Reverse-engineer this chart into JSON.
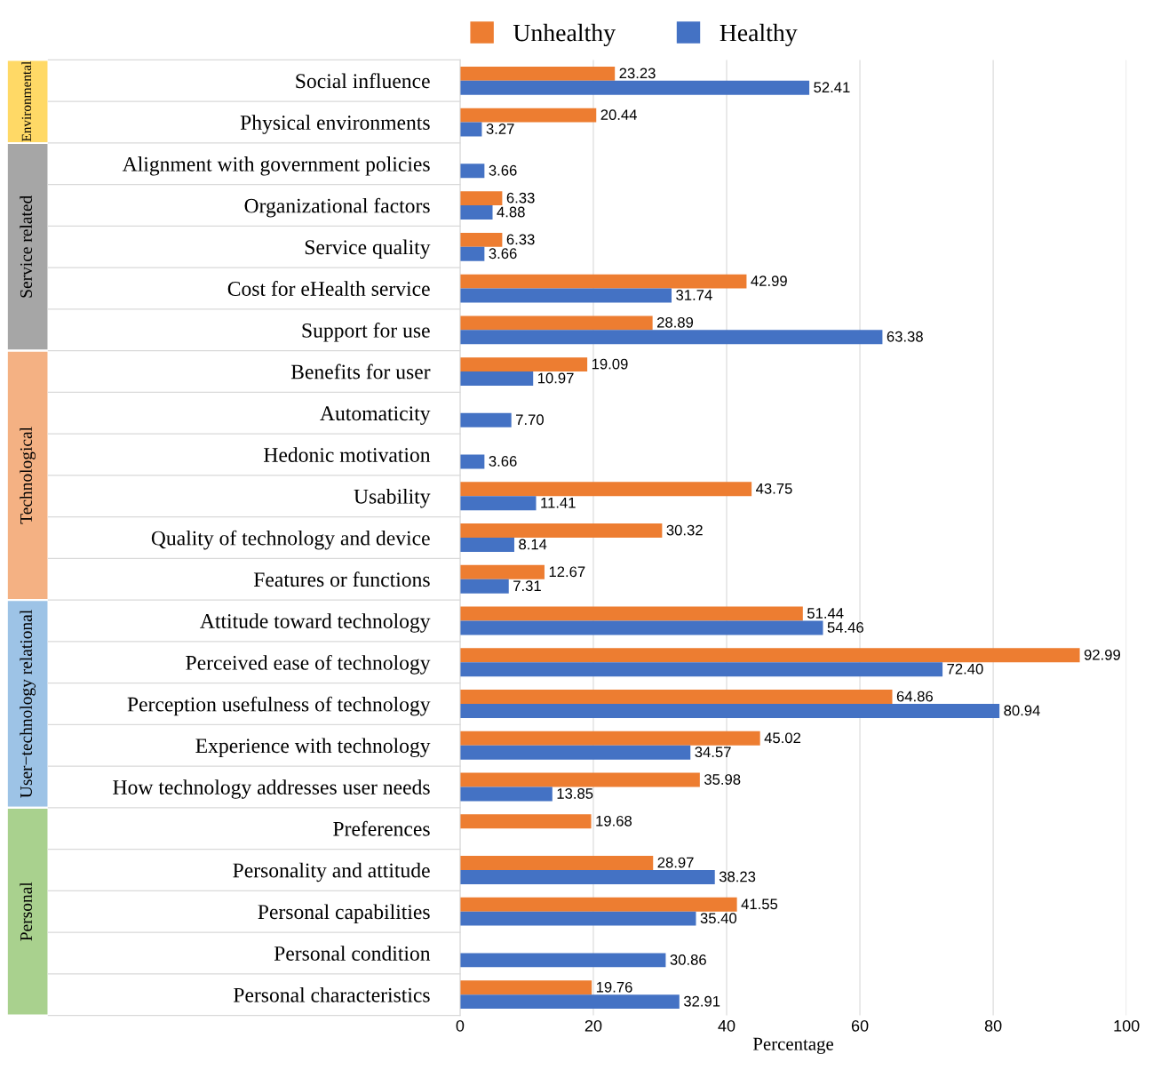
{
  "chart_data": {
    "type": "bar",
    "orientation": "horizontal",
    "xlabel": "Percentage",
    "categories": [
      "Social influence",
      "Physical environments",
      "Alignment with government policies",
      "Organizational factors",
      "Service quality",
      "Cost for eHealth service",
      "Support for use",
      "Benefits for user",
      "Automaticity",
      "Hedonic motivation",
      "Usability",
      "Quality of technology and device",
      "Features or functions",
      "Attitude toward technology",
      "Perceived ease of technology",
      "Perception usefulness of technology",
      "Experience with technology",
      "How technology addresses user needs",
      "Preferences",
      "Personality and attitude",
      "Personal capabilities",
      "Personal condition",
      "Personal characteristics"
    ],
    "series": [
      {
        "name": "Unhealthy",
        "color": "#ed7d31",
        "values": [
          23.23,
          20.44,
          null,
          6.33,
          6.33,
          42.99,
          28.89,
          19.09,
          null,
          null,
          43.75,
          30.32,
          12.67,
          51.44,
          92.99,
          64.86,
          45.02,
          35.98,
          19.68,
          28.97,
          41.55,
          null,
          19.76
        ],
        "value_labels": [
          "23.23",
          "20.44",
          null,
          "6.33",
          "6.33",
          "42.99",
          "28.89",
          "19.09",
          null,
          null,
          "43.75",
          "30.32",
          "12.67",
          "51.44",
          "92.99",
          "64.86",
          "45.02",
          "35.98",
          "19.68",
          "28.97",
          "41.55",
          null,
          "19.76"
        ]
      },
      {
        "name": "Healthy",
        "color": "#4472c4",
        "values": [
          52.41,
          3.27,
          3.66,
          4.88,
          3.66,
          31.74,
          63.38,
          10.97,
          7.7,
          3.66,
          11.41,
          8.14,
          7.31,
          54.46,
          72.4,
          80.94,
          34.57,
          13.85,
          null,
          38.23,
          35.4,
          30.86,
          32.91
        ],
        "value_labels": [
          "52.41",
          "3.27",
          "3.66",
          "4.88",
          "3.66",
          "31.74",
          "63.38",
          "10.97",
          "7.70",
          "3.66",
          "11.41",
          "8.14",
          "7.31",
          "54.46",
          "72.40",
          "80.94",
          "34.57",
          "13.85",
          null,
          "38.23",
          "35.40",
          "30.86",
          "32.91"
        ]
      }
    ],
    "xlim": [
      0,
      100
    ],
    "xticks": [
      0,
      20,
      40,
      60,
      80,
      100
    ],
    "grid": "x",
    "legend": "top",
    "annotations": [
      "Environmental",
      "Service related",
      "Technological",
      "User−technology relational",
      "Personal"
    ]
  }
}
